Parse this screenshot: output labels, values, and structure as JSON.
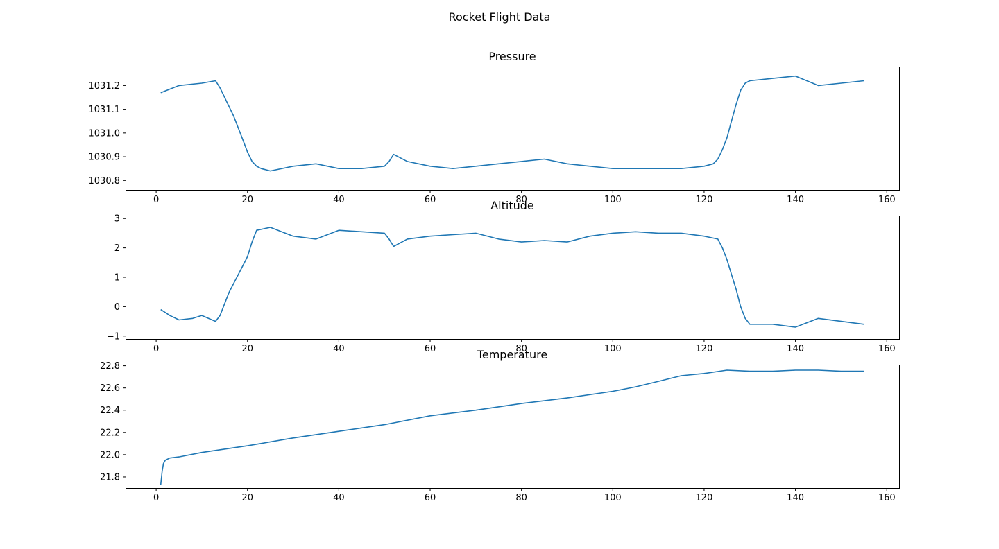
{
  "figure": {
    "title": "Rocket Flight Data"
  },
  "colors": {
    "series": "#1f77b4",
    "axes": "#000000",
    "background": "#ffffff"
  },
  "chart_data": [
    {
      "type": "line",
      "title": "Pressure",
      "xlabel": "",
      "ylabel": "",
      "xlim": [
        -6.7,
        162.7
      ],
      "ylim": [
        1030.76,
        1031.28
      ],
      "xticks": [
        0,
        20,
        40,
        60,
        80,
        100,
        120,
        140,
        160
      ],
      "xtick_labels": [
        "0",
        "20",
        "40",
        "60",
        "80",
        "100",
        "120",
        "140",
        "160"
      ],
      "yticks": [
        1030.8,
        1030.9,
        1031.0,
        1031.1,
        1031.2
      ],
      "ytick_labels": [
        "1030.8",
        "1030.9",
        "1031.0",
        "1031.1",
        "1031.2"
      ],
      "grid": false,
      "series": [
        {
          "x": [
            1,
            5,
            10,
            13,
            14,
            15,
            16,
            17,
            18,
            19,
            20,
            21,
            22,
            23,
            25,
            30,
            35,
            40,
            45,
            50,
            51,
            52,
            53,
            55,
            60,
            65,
            70,
            75,
            80,
            85,
            90,
            95,
            100,
            105,
            110,
            115,
            120,
            122,
            123,
            124,
            125,
            126,
            127,
            128,
            129,
            130,
            135,
            140,
            145,
            150,
            155
          ],
          "y": [
            1031.17,
            1031.2,
            1031.21,
            1031.22,
            1031.19,
            1031.15,
            1031.11,
            1031.07,
            1031.02,
            1030.97,
            1030.92,
            1030.88,
            1030.86,
            1030.85,
            1030.84,
            1030.86,
            1030.87,
            1030.85,
            1030.85,
            1030.86,
            1030.88,
            1030.91,
            1030.9,
            1030.88,
            1030.86,
            1030.85,
            1030.86,
            1030.87,
            1030.88,
            1030.89,
            1030.87,
            1030.86,
            1030.85,
            1030.85,
            1030.85,
            1030.85,
            1030.86,
            1030.87,
            1030.89,
            1030.93,
            1030.98,
            1031.05,
            1031.12,
            1031.18,
            1031.21,
            1031.22,
            1031.23,
            1031.24,
            1031.2,
            1031.21,
            1031.22
          ]
        }
      ]
    },
    {
      "type": "line",
      "title": "Altitude",
      "xlabel": "",
      "ylabel": "",
      "xlim": [
        -6.7,
        162.7
      ],
      "ylim": [
        -1.1,
        3.1
      ],
      "xticks": [
        0,
        20,
        40,
        60,
        80,
        100,
        120,
        140,
        160
      ],
      "xtick_labels": [
        "0",
        "20",
        "40",
        "60",
        "80",
        "100",
        "120",
        "140",
        "160"
      ],
      "yticks": [
        -1,
        0,
        1,
        2,
        3
      ],
      "ytick_labels": [
        "−1",
        "0",
        "1",
        "2",
        "3"
      ],
      "grid": false,
      "series": [
        {
          "x": [
            1,
            3,
            5,
            8,
            10,
            13,
            14,
            15,
            16,
            17,
            18,
            19,
            20,
            21,
            22,
            25,
            30,
            35,
            40,
            45,
            50,
            51,
            52,
            55,
            60,
            65,
            70,
            75,
            80,
            85,
            90,
            95,
            100,
            105,
            110,
            115,
            120,
            123,
            124,
            125,
            126,
            127,
            128,
            129,
            130,
            135,
            140,
            145,
            150,
            155
          ],
          "y": [
            -0.1,
            -0.3,
            -0.45,
            -0.4,
            -0.3,
            -0.5,
            -0.3,
            0.1,
            0.5,
            0.8,
            1.1,
            1.4,
            1.7,
            2.2,
            2.6,
            2.7,
            2.4,
            2.3,
            2.6,
            2.55,
            2.5,
            2.3,
            2.05,
            2.3,
            2.4,
            2.45,
            2.5,
            2.3,
            2.2,
            2.25,
            2.2,
            2.4,
            2.5,
            2.55,
            2.5,
            2.5,
            2.4,
            2.3,
            2.0,
            1.6,
            1.1,
            0.6,
            0.0,
            -0.4,
            -0.6,
            -0.6,
            -0.7,
            -0.4,
            -0.5,
            -0.6
          ]
        }
      ]
    },
    {
      "type": "line",
      "title": "Temperature",
      "xlabel": "",
      "ylabel": "",
      "xlim": [
        -6.7,
        162.7
      ],
      "ylim": [
        21.7,
        22.81
      ],
      "xticks": [
        0,
        20,
        40,
        60,
        80,
        100,
        120,
        140,
        160
      ],
      "xtick_labels": [
        "0",
        "20",
        "40",
        "60",
        "80",
        "100",
        "120",
        "140",
        "160"
      ],
      "yticks": [
        21.8,
        22.0,
        22.2,
        22.4,
        22.6,
        22.8
      ],
      "ytick_labels": [
        "21.8",
        "22.0",
        "22.2",
        "22.4",
        "22.6",
        "22.8"
      ],
      "grid": false,
      "series": [
        {
          "x": [
            1,
            1.3,
            1.6,
            2,
            3,
            5,
            10,
            20,
            30,
            40,
            50,
            60,
            70,
            80,
            90,
            100,
            105,
            110,
            115,
            120,
            125,
            130,
            135,
            140,
            145,
            150,
            155
          ],
          "y": [
            21.73,
            21.85,
            21.92,
            21.95,
            21.97,
            21.98,
            22.02,
            22.08,
            22.15,
            22.21,
            22.27,
            22.35,
            22.4,
            22.46,
            22.51,
            22.57,
            22.61,
            22.66,
            22.71,
            22.73,
            22.76,
            22.75,
            22.75,
            22.76,
            22.76,
            22.75,
            22.75
          ]
        }
      ]
    }
  ]
}
